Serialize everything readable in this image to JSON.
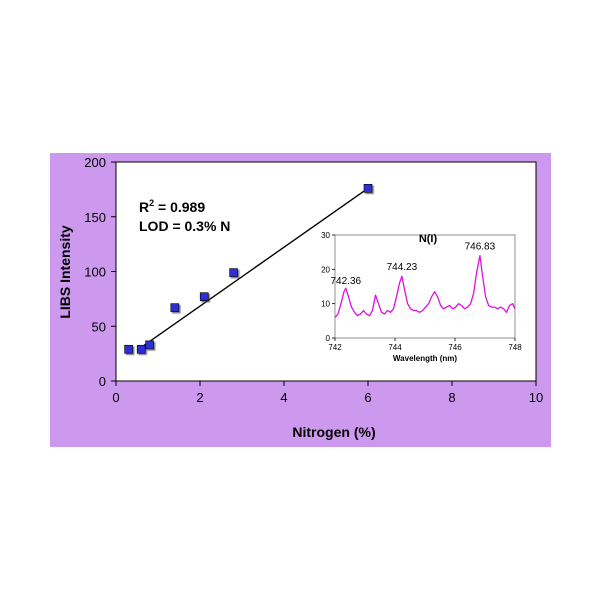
{
  "chart_data": {
    "type": "scatter",
    "xlabel": "Nitrogen (%)",
    "ylabel": "LIBS Intensity",
    "xlim": [
      0,
      10
    ],
    "ylim": [
      0,
      200
    ],
    "xticks": [
      "0",
      "2",
      "4",
      "6",
      "8",
      "10"
    ],
    "yticks": [
      "0",
      "50",
      "100",
      "150",
      "200"
    ],
    "grid": false,
    "series": [
      {
        "type": "scatter",
        "x": [
          0.3,
          0.6,
          0.8,
          1.4,
          2.1,
          2.8,
          6.0
        ],
        "y": [
          29,
          29,
          33,
          67,
          77,
          99,
          176
        ],
        "color": "#2e2ed6"
      }
    ],
    "fit_line": {
      "x": [
        0.5,
        6.0
      ],
      "y": [
        28,
        176
      ],
      "color": "#000000"
    },
    "annotations": {
      "r2_label": "R",
      "r2_sup": "2",
      "r2_value": " = 0.989",
      "lod": "LOD = 0.3% N"
    },
    "inset": {
      "title": "N(I)",
      "xlabel": "Wavelength (nm)",
      "xlim": [
        742,
        748
      ],
      "ylim": [
        0,
        30
      ],
      "xticks": [
        "742",
        "744",
        "746",
        "748"
      ],
      "yticks": [
        "0",
        "10",
        "20",
        "30"
      ],
      "peak_labels": [
        {
          "text": "742.36",
          "x": 742.36,
          "y": 14
        },
        {
          "text": "744.23",
          "x": 744.23,
          "y": 18
        },
        {
          "text": "746.83",
          "x": 746.83,
          "y": 24
        }
      ],
      "color": "#dd11dd",
      "spectrum_x": [
        742.0,
        742.1,
        742.2,
        742.3,
        742.36,
        742.45,
        742.55,
        742.65,
        742.75,
        742.85,
        742.95,
        743.05,
        743.15,
        743.25,
        743.35,
        743.45,
        743.55,
        743.65,
        743.75,
        743.85,
        743.95,
        744.05,
        744.15,
        744.23,
        744.32,
        744.42,
        744.52,
        744.62,
        744.72,
        744.82,
        744.92,
        745.02,
        745.12,
        745.22,
        745.32,
        745.42,
        745.52,
        745.62,
        745.72,
        745.82,
        745.92,
        746.02,
        746.12,
        746.22,
        746.32,
        746.42,
        746.52,
        746.62,
        746.72,
        746.83,
        746.92,
        747.02,
        747.12,
        747.22,
        747.32,
        747.42,
        747.52,
        747.62,
        747.72,
        747.82,
        747.92,
        748.0
      ],
      "spectrum_y": [
        6,
        7,
        10,
        13.5,
        14.5,
        12,
        9,
        7.5,
        6.5,
        7,
        8,
        7,
        6.5,
        8,
        12.5,
        10,
        7.5,
        7,
        8,
        7.5,
        8.5,
        12,
        16,
        18,
        14,
        10,
        8.5,
        8,
        8,
        7.5,
        8,
        9,
        10,
        12,
        13.5,
        12,
        9.5,
        8.5,
        9,
        9.5,
        8.5,
        9,
        10,
        9.5,
        8.5,
        9,
        10,
        13,
        19,
        24,
        18,
        12,
        9.5,
        9,
        9,
        8.5,
        9,
        8.5,
        7.5,
        9.5,
        10,
        8.5
      ]
    }
  }
}
